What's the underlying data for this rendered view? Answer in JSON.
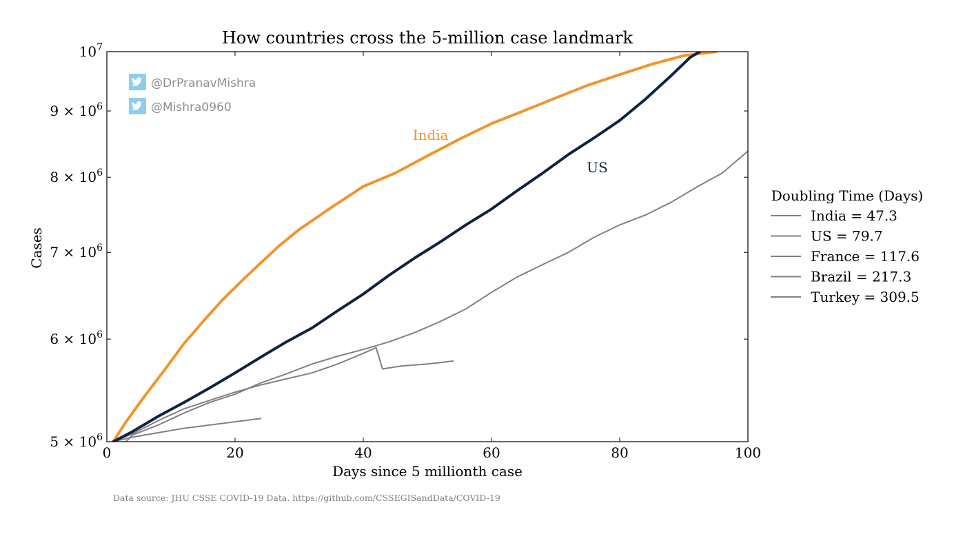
{
  "chart_data": {
    "type": "line",
    "title": "How countries cross the 5-million case landmark",
    "xlabel": "Days since 5 millionth case",
    "ylabel": "Cases",
    "xlim": [
      0,
      100
    ],
    "ylim": [
      5000000,
      10000000
    ],
    "yscale": "log",
    "grid": false,
    "x_ticks": [
      0,
      20,
      40,
      60,
      80,
      100
    ],
    "x_tick_labels": [
      "0",
      "20",
      "40",
      "60",
      "80",
      "100"
    ],
    "y_ticks": [
      5000000,
      6000000,
      7000000,
      8000000,
      9000000,
      10000000
    ],
    "y_tick_labels": [
      {
        "mant": "5",
        "exp": "6"
      },
      {
        "mant": "6",
        "exp": "6"
      },
      {
        "mant": "7",
        "exp": "6"
      },
      {
        "mant": "8",
        "exp": "6"
      },
      {
        "mant": "9",
        "exp": "6"
      },
      {
        "mant": "",
        "exp": "7"
      }
    ],
    "legend": {
      "title": "Doubling Time (Days)",
      "placement": "outside-right",
      "entries": [
        "India = 47.3",
        "US = 79.7",
        "France = 117.6",
        "Brazil = 217.3",
        "Turkey = 309.5"
      ]
    },
    "annotations": [
      {
        "text": "India",
        "x": 50.5,
        "y": 8550000,
        "color": "#f0952b"
      },
      {
        "text": "US",
        "x": 76.5,
        "y": 8070000,
        "color": "#0e2341"
      }
    ],
    "series": [
      {
        "name": "India",
        "color": "#f0952b",
        "width": 4,
        "x": [
          1,
          3,
          6,
          9,
          12,
          15,
          18,
          21,
          24,
          27,
          30,
          35,
          40,
          45,
          50,
          55,
          60,
          65,
          70,
          75,
          80,
          85,
          90,
          95
        ],
        "y": [
          5000000,
          5180000,
          5430000,
          5680000,
          5950000,
          6190000,
          6430000,
          6650000,
          6870000,
          7090000,
          7290000,
          7580000,
          7870000,
          8060000,
          8310000,
          8560000,
          8800000,
          9000000,
          9210000,
          9420000,
          9600000,
          9780000,
          9930000,
          10000000
        ]
      },
      {
        "name": "US",
        "color": "#0e2341",
        "width": 4,
        "x": [
          1,
          4,
          8,
          12,
          16,
          20,
          24,
          28,
          32,
          36,
          40,
          44,
          48,
          52,
          56,
          60,
          64,
          68,
          72,
          76,
          80,
          84,
          88,
          91,
          92.5
        ],
        "y": [
          5000000,
          5090000,
          5230000,
          5360000,
          5500000,
          5650000,
          5810000,
          5970000,
          6120000,
          6310000,
          6500000,
          6720000,
          6930000,
          7130000,
          7350000,
          7560000,
          7810000,
          8060000,
          8330000,
          8580000,
          8850000,
          9190000,
          9580000,
          9900000,
          10000000
        ]
      },
      {
        "name": "France",
        "color": "#808080",
        "width": 2,
        "x": [
          1,
          4,
          8,
          12,
          16,
          20,
          24,
          28,
          32,
          36,
          40,
          42,
          43,
          46,
          50,
          54
        ],
        "y": [
          5000000,
          5070000,
          5190000,
          5300000,
          5380000,
          5460000,
          5530000,
          5590000,
          5650000,
          5740000,
          5850000,
          5910000,
          5690000,
          5720000,
          5740000,
          5770000
        ]
      },
      {
        "name": "Brazil",
        "color": "#808080",
        "width": 2,
        "x": [
          1,
          3,
          4,
          8,
          12,
          16,
          20,
          24,
          28,
          32,
          36,
          40,
          44,
          48,
          52,
          56,
          60,
          64,
          68,
          72,
          76,
          80,
          84,
          88,
          92,
          96,
          100
        ],
        "y": [
          4990000,
          5000000,
          5060000,
          5150000,
          5260000,
          5360000,
          5440000,
          5550000,
          5640000,
          5740000,
          5820000,
          5890000,
          5970000,
          6070000,
          6190000,
          6330000,
          6520000,
          6700000,
          6850000,
          7000000,
          7190000,
          7350000,
          7480000,
          7650000,
          7860000,
          8060000,
          8380000
        ]
      },
      {
        "name": "Turkey",
        "color": "#808080",
        "width": 2,
        "x": [
          1,
          4,
          8,
          12,
          16,
          20,
          24
        ],
        "y": [
          5000000,
          5040000,
          5080000,
          5120000,
          5150000,
          5180000,
          5210000
        ]
      }
    ]
  },
  "watermark": {
    "handles": [
      "@DrPranavMishra",
      "@Mishra0960"
    ],
    "icon": "twitter-bird-icon",
    "icon_color": "#8ecdf0",
    "text_color": "#8c8c8c"
  },
  "source_note": "Data source: JHU CSSE COVID-19 Data. https://github.com/CSSEGISandData/COVID-19"
}
